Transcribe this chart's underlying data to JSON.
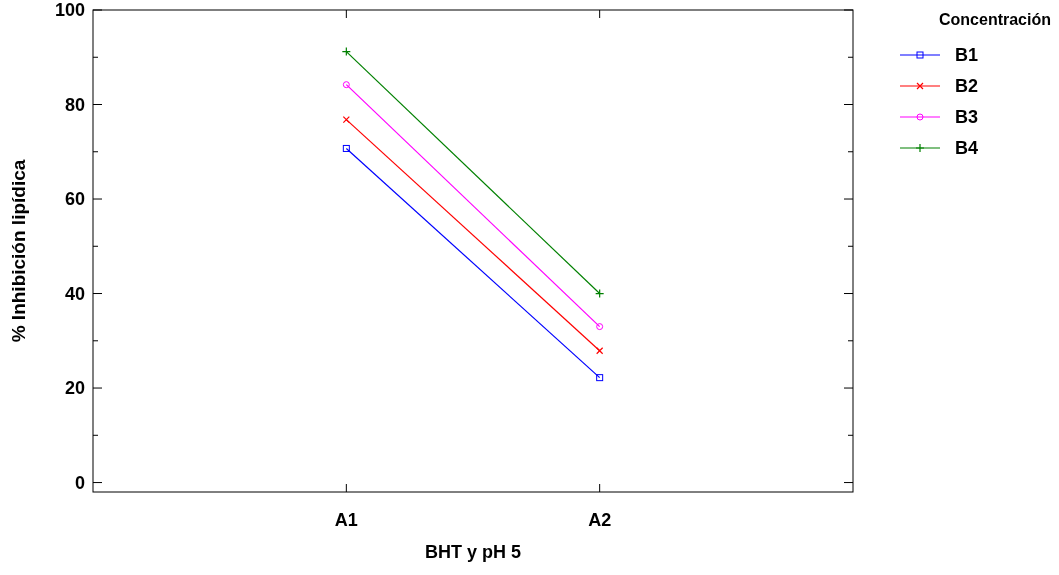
{
  "chart_data": {
    "type": "line",
    "xlabel": "BHT y pH 5",
    "ylabel": "% Inhibición lipídica",
    "legend_title": "Concentración",
    "legend": "right",
    "grid": false,
    "categories": [
      "A1",
      "A2"
    ],
    "ylim": [
      -2,
      100
    ],
    "yticks": [
      0,
      {
        "value": 10,
        "label": null
      },
      20,
      {
        "value": 30,
        "label": null
      },
      40,
      {
        "value": 50,
        "label": null
      },
      60,
      {
        "value": 70,
        "label": null
      },
      80,
      {
        "value": 90,
        "label": null
      },
      100
    ],
    "series": [
      {
        "name": "B1",
        "color": "#0000ff",
        "marker": "square",
        "values": [
          70.7,
          22.2
        ]
      },
      {
        "name": "B2",
        "color": "#ff0000",
        "marker": "cross",
        "values": [
          76.8,
          27.9
        ]
      },
      {
        "name": "B3",
        "color": "#ff00ff",
        "marker": "circle",
        "values": [
          84.2,
          33
        ]
      },
      {
        "name": "B4",
        "color": "#008000",
        "marker": "plus",
        "values": [
          91.2,
          40
        ]
      }
    ]
  }
}
